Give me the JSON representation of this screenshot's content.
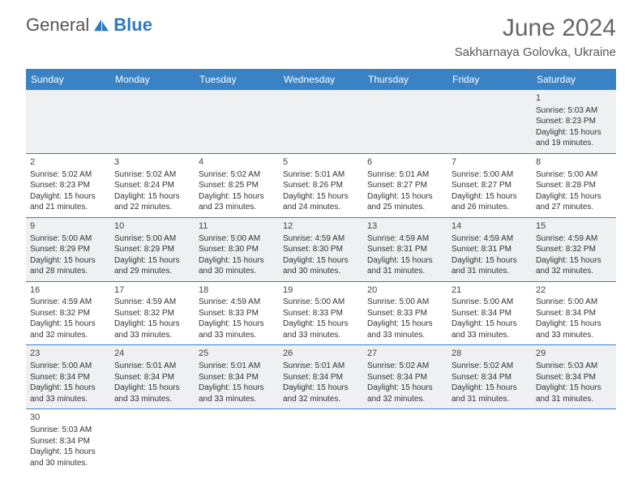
{
  "brand": {
    "name1": "General",
    "name2": "Blue",
    "logo_color": "#2b7bbf"
  },
  "title": "June 2024",
  "location": "Sakharnaya Golovka, Ukraine",
  "colors": {
    "header_bg": "#3a82c4",
    "header_fg": "#ffffff",
    "row_alt_bg": "#eef0f1",
    "divider": "#3a82c4",
    "title_color": "#666666",
    "text_color": "#333333"
  },
  "typography": {
    "title_fontsize": 30,
    "location_fontsize": 15,
    "weekday_fontsize": 12,
    "cell_fontsize": 10
  },
  "weekdays": [
    "Sunday",
    "Monday",
    "Tuesday",
    "Wednesday",
    "Thursday",
    "Friday",
    "Saturday"
  ],
  "weeks": [
    {
      "alt": true,
      "cells": [
        null,
        null,
        null,
        null,
        null,
        null,
        {
          "d": "1",
          "sr": "Sunrise: 5:03 AM",
          "ss": "Sunset: 8:23 PM",
          "dl1": "Daylight: 15 hours",
          "dl2": "and 19 minutes."
        }
      ]
    },
    {
      "alt": false,
      "cells": [
        {
          "d": "2",
          "sr": "Sunrise: 5:02 AM",
          "ss": "Sunset: 8:23 PM",
          "dl1": "Daylight: 15 hours",
          "dl2": "and 21 minutes."
        },
        {
          "d": "3",
          "sr": "Sunrise: 5:02 AM",
          "ss": "Sunset: 8:24 PM",
          "dl1": "Daylight: 15 hours",
          "dl2": "and 22 minutes."
        },
        {
          "d": "4",
          "sr": "Sunrise: 5:02 AM",
          "ss": "Sunset: 8:25 PM",
          "dl1": "Daylight: 15 hours",
          "dl2": "and 23 minutes."
        },
        {
          "d": "5",
          "sr": "Sunrise: 5:01 AM",
          "ss": "Sunset: 8:26 PM",
          "dl1": "Daylight: 15 hours",
          "dl2": "and 24 minutes."
        },
        {
          "d": "6",
          "sr": "Sunrise: 5:01 AM",
          "ss": "Sunset: 8:27 PM",
          "dl1": "Daylight: 15 hours",
          "dl2": "and 25 minutes."
        },
        {
          "d": "7",
          "sr": "Sunrise: 5:00 AM",
          "ss": "Sunset: 8:27 PM",
          "dl1": "Daylight: 15 hours",
          "dl2": "and 26 minutes."
        },
        {
          "d": "8",
          "sr": "Sunrise: 5:00 AM",
          "ss": "Sunset: 8:28 PM",
          "dl1": "Daylight: 15 hours",
          "dl2": "and 27 minutes."
        }
      ]
    },
    {
      "alt": true,
      "cells": [
        {
          "d": "9",
          "sr": "Sunrise: 5:00 AM",
          "ss": "Sunset: 8:29 PM",
          "dl1": "Daylight: 15 hours",
          "dl2": "and 28 minutes."
        },
        {
          "d": "10",
          "sr": "Sunrise: 5:00 AM",
          "ss": "Sunset: 8:29 PM",
          "dl1": "Daylight: 15 hours",
          "dl2": "and 29 minutes."
        },
        {
          "d": "11",
          "sr": "Sunrise: 5:00 AM",
          "ss": "Sunset: 8:30 PM",
          "dl1": "Daylight: 15 hours",
          "dl2": "and 30 minutes."
        },
        {
          "d": "12",
          "sr": "Sunrise: 4:59 AM",
          "ss": "Sunset: 8:30 PM",
          "dl1": "Daylight: 15 hours",
          "dl2": "and 30 minutes."
        },
        {
          "d": "13",
          "sr": "Sunrise: 4:59 AM",
          "ss": "Sunset: 8:31 PM",
          "dl1": "Daylight: 15 hours",
          "dl2": "and 31 minutes."
        },
        {
          "d": "14",
          "sr": "Sunrise: 4:59 AM",
          "ss": "Sunset: 8:31 PM",
          "dl1": "Daylight: 15 hours",
          "dl2": "and 31 minutes."
        },
        {
          "d": "15",
          "sr": "Sunrise: 4:59 AM",
          "ss": "Sunset: 8:32 PM",
          "dl1": "Daylight: 15 hours",
          "dl2": "and 32 minutes."
        }
      ]
    },
    {
      "alt": false,
      "cells": [
        {
          "d": "16",
          "sr": "Sunrise: 4:59 AM",
          "ss": "Sunset: 8:32 PM",
          "dl1": "Daylight: 15 hours",
          "dl2": "and 32 minutes."
        },
        {
          "d": "17",
          "sr": "Sunrise: 4:59 AM",
          "ss": "Sunset: 8:32 PM",
          "dl1": "Daylight: 15 hours",
          "dl2": "and 33 minutes."
        },
        {
          "d": "18",
          "sr": "Sunrise: 4:59 AM",
          "ss": "Sunset: 8:33 PM",
          "dl1": "Daylight: 15 hours",
          "dl2": "and 33 minutes."
        },
        {
          "d": "19",
          "sr": "Sunrise: 5:00 AM",
          "ss": "Sunset: 8:33 PM",
          "dl1": "Daylight: 15 hours",
          "dl2": "and 33 minutes."
        },
        {
          "d": "20",
          "sr": "Sunrise: 5:00 AM",
          "ss": "Sunset: 8:33 PM",
          "dl1": "Daylight: 15 hours",
          "dl2": "and 33 minutes."
        },
        {
          "d": "21",
          "sr": "Sunrise: 5:00 AM",
          "ss": "Sunset: 8:34 PM",
          "dl1": "Daylight: 15 hours",
          "dl2": "and 33 minutes."
        },
        {
          "d": "22",
          "sr": "Sunrise: 5:00 AM",
          "ss": "Sunset: 8:34 PM",
          "dl1": "Daylight: 15 hours",
          "dl2": "and 33 minutes."
        }
      ]
    },
    {
      "alt": true,
      "cells": [
        {
          "d": "23",
          "sr": "Sunrise: 5:00 AM",
          "ss": "Sunset: 8:34 PM",
          "dl1": "Daylight: 15 hours",
          "dl2": "and 33 minutes."
        },
        {
          "d": "24",
          "sr": "Sunrise: 5:01 AM",
          "ss": "Sunset: 8:34 PM",
          "dl1": "Daylight: 15 hours",
          "dl2": "and 33 minutes."
        },
        {
          "d": "25",
          "sr": "Sunrise: 5:01 AM",
          "ss": "Sunset: 8:34 PM",
          "dl1": "Daylight: 15 hours",
          "dl2": "and 33 minutes."
        },
        {
          "d": "26",
          "sr": "Sunrise: 5:01 AM",
          "ss": "Sunset: 8:34 PM",
          "dl1": "Daylight: 15 hours",
          "dl2": "and 32 minutes."
        },
        {
          "d": "27",
          "sr": "Sunrise: 5:02 AM",
          "ss": "Sunset: 8:34 PM",
          "dl1": "Daylight: 15 hours",
          "dl2": "and 32 minutes."
        },
        {
          "d": "28",
          "sr": "Sunrise: 5:02 AM",
          "ss": "Sunset: 8:34 PM",
          "dl1": "Daylight: 15 hours",
          "dl2": "and 31 minutes."
        },
        {
          "d": "29",
          "sr": "Sunrise: 5:03 AM",
          "ss": "Sunset: 8:34 PM",
          "dl1": "Daylight: 15 hours",
          "dl2": "and 31 minutes."
        }
      ]
    },
    {
      "alt": false,
      "noborder": true,
      "cells": [
        {
          "d": "30",
          "sr": "Sunrise: 5:03 AM",
          "ss": "Sunset: 8:34 PM",
          "dl1": "Daylight: 15 hours",
          "dl2": "and 30 minutes."
        },
        null,
        null,
        null,
        null,
        null,
        null
      ]
    }
  ]
}
